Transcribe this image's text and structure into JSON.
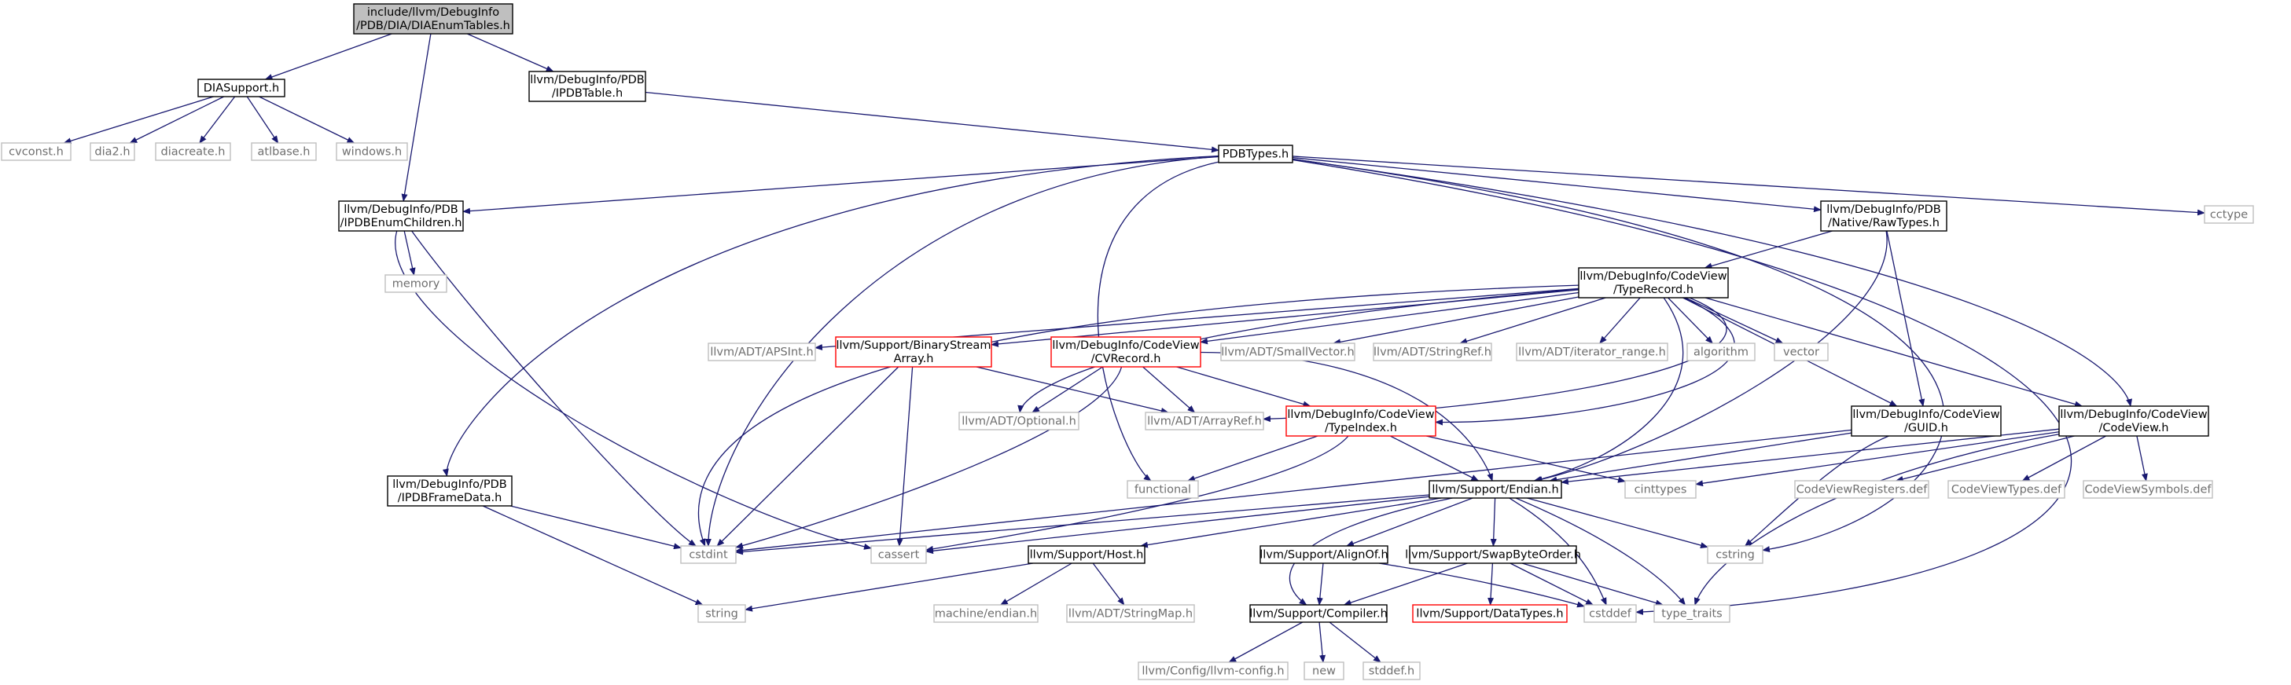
{
  "diagram": {
    "nodes": [
      {
        "id": "root",
        "lines": [
          "include/llvm/DebugInfo",
          "/PDB/DIA/DIAEnumTables.h"
        ],
        "style": "root"
      },
      {
        "id": "diasupport",
        "lines": [
          "DIASupport.h"
        ],
        "style": "normal"
      },
      {
        "id": "ipdbtable",
        "lines": [
          "llvm/DebugInfo/PDB",
          "/IPDBTable.h"
        ],
        "style": "normal"
      },
      {
        "id": "cvconst",
        "lines": [
          "cvconst.h"
        ],
        "style": "gray"
      },
      {
        "id": "dia2",
        "lines": [
          "dia2.h"
        ],
        "style": "gray"
      },
      {
        "id": "diacreate",
        "lines": [
          "diacreate.h"
        ],
        "style": "gray"
      },
      {
        "id": "atlbase",
        "lines": [
          "atlbase.h"
        ],
        "style": "gray"
      },
      {
        "id": "windows",
        "lines": [
          "windows.h"
        ],
        "style": "gray"
      },
      {
        "id": "pdbtypes",
        "lines": [
          "PDBTypes.h"
        ],
        "style": "normal"
      },
      {
        "id": "ipdbenumchildren",
        "lines": [
          "llvm/DebugInfo/PDB",
          "/IPDBEnumChildren.h"
        ],
        "style": "normal"
      },
      {
        "id": "rawtypes",
        "lines": [
          "llvm/DebugInfo/PDB",
          "/Native/RawTypes.h"
        ],
        "style": "normal"
      },
      {
        "id": "cctype",
        "lines": [
          "cctype"
        ],
        "style": "gray"
      },
      {
        "id": "memory",
        "lines": [
          "memory"
        ],
        "style": "gray"
      },
      {
        "id": "typerecord",
        "lines": [
          "llvm/DebugInfo/CodeView",
          "/TypeRecord.h"
        ],
        "style": "normal"
      },
      {
        "id": "apsint",
        "lines": [
          "llvm/ADT/APSInt.h"
        ],
        "style": "gray"
      },
      {
        "id": "binarystream",
        "lines": [
          "llvm/Support/BinaryStream",
          "Array.h"
        ],
        "style": "red"
      },
      {
        "id": "cvrecord",
        "lines": [
          "llvm/DebugInfo/CodeView",
          "/CVRecord.h"
        ],
        "style": "red"
      },
      {
        "id": "smallvector",
        "lines": [
          "llvm/ADT/SmallVector.h"
        ],
        "style": "gray"
      },
      {
        "id": "stringref",
        "lines": [
          "llvm/ADT/StringRef.h"
        ],
        "style": "gray"
      },
      {
        "id": "iterrange",
        "lines": [
          "llvm/ADT/iterator_range.h"
        ],
        "style": "gray"
      },
      {
        "id": "algorithm",
        "lines": [
          "algorithm"
        ],
        "style": "gray"
      },
      {
        "id": "vector",
        "lines": [
          "vector"
        ],
        "style": "gray"
      },
      {
        "id": "optional",
        "lines": [
          "llvm/ADT/Optional.h"
        ],
        "style": "gray"
      },
      {
        "id": "arrayref",
        "lines": [
          "llvm/ADT/ArrayRef.h"
        ],
        "style": "gray"
      },
      {
        "id": "typeindex",
        "lines": [
          "llvm/DebugInfo/CodeView",
          "/TypeIndex.h"
        ],
        "style": "red"
      },
      {
        "id": "guid",
        "lines": [
          "llvm/DebugInfo/CodeView",
          "/GUID.h"
        ],
        "style": "normal"
      },
      {
        "id": "codeview",
        "lines": [
          "llvm/DebugInfo/CodeView",
          "/CodeView.h"
        ],
        "style": "normal"
      },
      {
        "id": "ipdbframedata",
        "lines": [
          "llvm/DebugInfo/PDB",
          "/IPDBFrameData.h"
        ],
        "style": "normal"
      },
      {
        "id": "functional",
        "lines": [
          "functional"
        ],
        "style": "gray"
      },
      {
        "id": "endian",
        "lines": [
          "llvm/Support/Endian.h"
        ],
        "style": "normal"
      },
      {
        "id": "cinttypes",
        "lines": [
          "cinttypes"
        ],
        "style": "gray"
      },
      {
        "id": "cvregisters",
        "lines": [
          "CodeViewRegisters.def"
        ],
        "style": "gray"
      },
      {
        "id": "cvtypes",
        "lines": [
          "CodeViewTypes.def"
        ],
        "style": "gray"
      },
      {
        "id": "cvsymbols",
        "lines": [
          "CodeViewSymbols.def"
        ],
        "style": "gray"
      },
      {
        "id": "cstdint",
        "lines": [
          "cstdint"
        ],
        "style": "gray"
      },
      {
        "id": "cassert",
        "lines": [
          "cassert"
        ],
        "style": "gray"
      },
      {
        "id": "host",
        "lines": [
          "llvm/Support/Host.h"
        ],
        "style": "normal"
      },
      {
        "id": "alignof",
        "lines": [
          "llvm/Support/AlignOf.h"
        ],
        "style": "normal"
      },
      {
        "id": "swapbyteorder",
        "lines": [
          "llvm/Support/SwapByteOrder.h"
        ],
        "style": "normal"
      },
      {
        "id": "cstring",
        "lines": [
          "cstring"
        ],
        "style": "gray"
      },
      {
        "id": "string",
        "lines": [
          "string"
        ],
        "style": "gray"
      },
      {
        "id": "machineendian",
        "lines": [
          "machine/endian.h"
        ],
        "style": "gray"
      },
      {
        "id": "stringmap",
        "lines": [
          "llvm/ADT/StringMap.h"
        ],
        "style": "gray"
      },
      {
        "id": "compiler",
        "lines": [
          "llvm/Support/Compiler.h"
        ],
        "style": "normal"
      },
      {
        "id": "datatypes",
        "lines": [
          "llvm/Support/DataTypes.h"
        ],
        "style": "red"
      },
      {
        "id": "cstddef",
        "lines": [
          "cstddef"
        ],
        "style": "gray"
      },
      {
        "id": "typetraits",
        "lines": [
          "type_traits"
        ],
        "style": "gray"
      },
      {
        "id": "llvmconfig",
        "lines": [
          "llvm/Config/llvm-config.h"
        ],
        "style": "gray"
      },
      {
        "id": "new",
        "lines": [
          "new"
        ],
        "style": "gray"
      },
      {
        "id": "stddef",
        "lines": [
          "stddef.h"
        ],
        "style": "gray"
      }
    ],
    "colors": {
      "edge": "#191970",
      "node_border": "#000000",
      "external_border": "#bfbfbf",
      "incomplete_border": "#ff0000",
      "root_fill": "#bfbfbf",
      "external_text": "#6e6e6e"
    }
  }
}
